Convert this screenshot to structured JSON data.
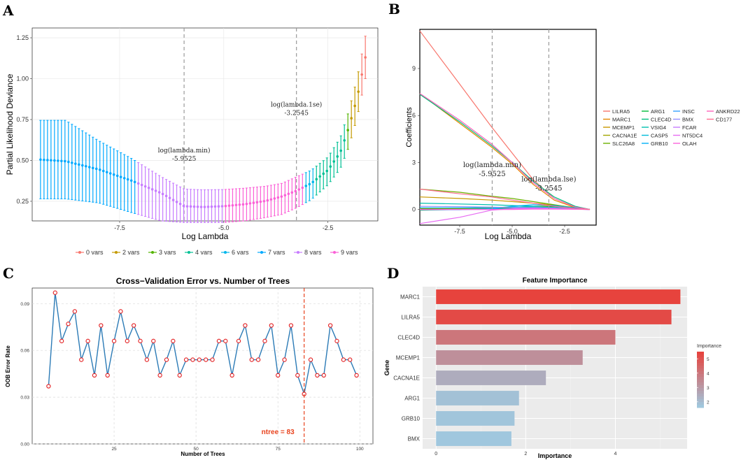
{
  "colors": {
    "v0": "#f8766d",
    "v2": "#c49a00",
    "v3": "#53b400",
    "v4": "#00c094",
    "v6": "#00b6eb",
    "v7": "#00a9ff",
    "v8": "#c77cff",
    "v9": "#fb61d7",
    "cv_line": "#2c7bb6",
    "cv_point": "#e31a1c",
    "cv_ref": "#e8431e"
  },
  "panel_labels": {
    "a": "A",
    "b": "B",
    "c": "C",
    "d": "D"
  },
  "chart_data": [
    {
      "id": "A",
      "type": "line",
      "title": "",
      "xlabel": "Log Lambda",
      "ylabel": "Partial Likelihood Deviance",
      "xlim": [
        -9.6,
        -1.3
      ],
      "ylim": [
        0.13,
        1.31
      ],
      "xticks": [
        -7.5,
        -5.0,
        -2.5
      ],
      "xtick_labels": [
        "-7.5",
        "-5.0",
        "-2.5"
      ],
      "yticks": [
        0.25,
        0.5,
        0.75,
        1.0,
        1.25
      ],
      "ytick_labels": [
        "0.25",
        "0.50",
        "0.75",
        "1.00",
        "1.25"
      ],
      "n_points": 94,
      "log_lambda_start": -9.4,
      "log_lambda_end": -1.6,
      "deviance_curve": {
        "log_lambda": [
          -9.4,
          -8.8,
          -8.0,
          -7.2,
          -6.5,
          -5.95,
          -5.5,
          -5.0,
          -4.5,
          -4.0,
          -3.6,
          -3.25,
          -2.9,
          -2.5,
          -2.2,
          -2.0,
          -1.8,
          -1.6
        ],
        "mean": [
          0.505,
          0.495,
          0.445,
          0.375,
          0.3,
          0.22,
          0.215,
          0.22,
          0.232,
          0.252,
          0.28,
          0.315,
          0.36,
          0.44,
          0.55,
          0.7,
          0.88,
          1.13
        ],
        "upper": [
          0.745,
          0.745,
          0.62,
          0.51,
          0.4,
          0.325,
          0.32,
          0.322,
          0.33,
          0.342,
          0.36,
          0.4,
          0.44,
          0.52,
          0.64,
          0.8,
          1.0,
          1.26
        ],
        "lower": [
          0.265,
          0.265,
          0.24,
          0.18,
          0.13,
          0.12,
          0.12,
          0.12,
          0.13,
          0.15,
          0.17,
          0.21,
          0.26,
          0.35,
          0.45,
          0.58,
          0.76,
          1.0
        ]
      },
      "legend": [
        {
          "key": "v0",
          "label": "0 vars",
          "from": -1.75,
          "to": -1.6
        },
        {
          "key": "v2",
          "label": "2 vars",
          "from": -1.95,
          "to": -1.75
        },
        {
          "key": "v3",
          "label": "3 vars",
          "from": -2.05,
          "to": -1.95
        },
        {
          "key": "v4",
          "label": "4 vars",
          "from": -2.85,
          "to": -2.05
        },
        {
          "key": "v6",
          "label": "6 vars",
          "from": -3.05,
          "to": -2.85
        },
        {
          "key": "v7",
          "label": "7 vars",
          "from": -9.5,
          "to": -7.1
        },
        {
          "key": "v8",
          "label": "8 vars",
          "from": -7.1,
          "to": -5.0
        },
        {
          "key": "v9",
          "label": "9 vars",
          "from": -5.0,
          "to": -3.05
        }
      ],
      "vlines": [
        {
          "x": -5.9525,
          "label1": "log(lambda.min)",
          "label2": "-5.9525",
          "label_y": 0.55
        },
        {
          "x": -3.2545,
          "label1": "log(lambda.1se)",
          "label2": "-3.2545",
          "label_y": 0.83
        }
      ]
    },
    {
      "id": "B",
      "type": "line",
      "xlabel": "Log Lambda",
      "ylabel": "Coefficients",
      "xlim": [
        -9.4,
        -1.0
      ],
      "ylim": [
        -1.0,
        11.5
      ],
      "xticks": [
        -7.5,
        -5.0,
        -2.5
      ],
      "xtick_labels": [
        "-7.5",
        "-5.0",
        "-2.5"
      ],
      "yticks": [
        0,
        3,
        6,
        9
      ],
      "ytick_labels": [
        "0",
        "3",
        "6",
        "9"
      ],
      "vlines": [
        {
          "x": -5.9525,
          "label1": "log(lambda.min)",
          "label2": "-5.9525",
          "label_y": 2.7
        },
        {
          "x": -3.2545,
          "label1": "log(lambda.lse)",
          "label2": "-3.2545",
          "label_y": 1.8
        }
      ],
      "series": [
        {
          "name": "LILRA5",
          "color": "#f8766d",
          "x": [
            -9.4,
            -7.5,
            -6.0,
            -5.0,
            -4.0,
            -3.0,
            -2.0,
            -1.3
          ],
          "y": [
            11.4,
            8.0,
            5.3,
            3.6,
            1.9,
            0.7,
            0.15,
            0.0
          ]
        },
        {
          "name": "MARC1",
          "color": "#e58700",
          "x": [
            -9.4,
            -7.5,
            -6.0,
            -5.0,
            -4.0,
            -3.0,
            -2.0,
            -1.3
          ],
          "y": [
            7.4,
            5.5,
            4.0,
            2.9,
            1.6,
            0.6,
            0.12,
            0.0
          ]
        },
        {
          "name": "MCEMP1",
          "color": "#c99800",
          "x": [
            -9.4,
            -7.5,
            -6.0,
            -5.0,
            -4.0,
            -3.0,
            -2.0,
            -1.3
          ],
          "y": [
            0.8,
            0.7,
            0.6,
            0.5,
            0.4,
            0.28,
            0.12,
            0.0
          ]
        },
        {
          "name": "CACNA1E",
          "color": "#a3a500",
          "x": [
            -9.4,
            -7.5,
            -6.0,
            -5.0,
            -4.0,
            -3.0,
            -2.0,
            -1.3
          ],
          "y": [
            0.05,
            0.05,
            0.08,
            0.12,
            0.2,
            0.22,
            0.12,
            0.0
          ]
        },
        {
          "name": "SLC26A8",
          "color": "#6bb100",
          "x": [
            -9.4,
            -7.5,
            -6.0,
            -5.0,
            -4.0,
            -3.0,
            -2.0,
            -1.3
          ],
          "y": [
            1.3,
            1.1,
            0.85,
            0.7,
            0.5,
            0.3,
            0.1,
            0.0
          ]
        },
        {
          "name": "ARG1",
          "color": "#00ba38",
          "x": [
            -9.4,
            -7.5,
            -6.0,
            -5.0,
            -4.0,
            -3.0,
            -2.0,
            -1.3
          ],
          "y": [
            -0.05,
            0.0,
            0.05,
            0.1,
            0.15,
            0.18,
            0.08,
            0.0
          ]
        },
        {
          "name": "CLEC4D",
          "color": "#00bf7d",
          "x": [
            -9.4,
            -7.5,
            -6.0,
            -5.0,
            -4.0,
            -3.0,
            -2.0,
            -1.3
          ],
          "y": [
            7.35,
            5.6,
            4.1,
            3.0,
            1.8,
            0.8,
            0.2,
            0.0
          ]
        },
        {
          "name": "VSIG4",
          "color": "#00c0af",
          "x": [
            -9.4,
            -7.5,
            -6.0,
            -5.0,
            -4.0,
            -3.0,
            -2.0,
            -1.3
          ],
          "y": [
            0.4,
            0.35,
            0.3,
            0.25,
            0.2,
            0.12,
            0.05,
            0.0
          ]
        },
        {
          "name": "CASP5",
          "color": "#00bcd8",
          "x": [
            -9.4,
            -7.5,
            -6.0,
            -5.0,
            -4.0,
            -3.0,
            -2.0,
            -1.3
          ],
          "y": [
            0.1,
            0.1,
            0.12,
            0.15,
            0.16,
            0.12,
            0.05,
            0.0
          ]
        },
        {
          "name": "GRB10",
          "color": "#00b0f6",
          "x": [
            -9.4,
            -7.5,
            -6.0,
            -5.0,
            -4.0,
            -3.0,
            -2.0,
            -1.3
          ],
          "y": [
            -0.02,
            -0.02,
            0.05,
            0.2,
            0.3,
            0.25,
            0.1,
            0.0
          ]
        },
        {
          "name": "INSC",
          "color": "#35a2ff",
          "x": [
            -9.4,
            -7.5,
            -6.0,
            -5.0,
            -4.0,
            -3.0,
            -2.0,
            -1.3
          ],
          "y": [
            0.0,
            0.0,
            0.02,
            0.05,
            0.08,
            0.06,
            0.02,
            0.0
          ]
        },
        {
          "name": "BMX",
          "color": "#9590ff",
          "x": [
            -9.4,
            -7.5,
            -6.0,
            -5.0,
            -4.0,
            -3.0,
            -2.0,
            -1.3
          ],
          "y": [
            0.2,
            0.18,
            0.15,
            0.12,
            0.1,
            0.07,
            0.03,
            0.0
          ]
        },
        {
          "name": "FCAR",
          "color": "#c77cff",
          "x": [
            -9.4,
            -7.5,
            -6.0,
            -5.0,
            -4.0,
            -3.0,
            -2.0,
            -1.3
          ],
          "y": [
            0.0,
            0.0,
            0.0,
            0.02,
            0.05,
            0.05,
            0.02,
            0.0
          ]
        },
        {
          "name": "NT5DC4",
          "color": "#e76bf3",
          "x": [
            -9.4,
            -7.5,
            -6.0,
            -5.0,
            -4.0,
            -3.0,
            -2.0,
            -1.3
          ],
          "y": [
            -0.9,
            -0.5,
            -0.05,
            0.05,
            0.1,
            0.08,
            0.03,
            0.0
          ]
        },
        {
          "name": "OLAH",
          "color": "#fa62db",
          "x": [
            -9.4,
            -7.5,
            -6.0,
            -5.0,
            -4.0,
            -3.0,
            -2.0,
            -1.3
          ],
          "y": [
            0.0,
            0.0,
            0.0,
            0.0,
            0.02,
            0.02,
            0.01,
            0.0
          ]
        },
        {
          "name": "ANKRD22",
          "color": "#ff62bc",
          "x": [
            -9.4,
            -7.5,
            -6.0,
            -5.0,
            -4.0,
            -3.0,
            -2.0,
            -1.3
          ],
          "y": [
            7.4,
            5.7,
            4.2,
            3.0,
            1.7,
            0.7,
            0.15,
            0.0
          ]
        },
        {
          "name": "CD177",
          "color": "#ff6c91",
          "x": [
            -9.4,
            -7.5,
            -6.0,
            -5.0,
            -4.0,
            -3.0,
            -2.0,
            -1.3
          ],
          "y": [
            1.3,
            1.0,
            0.8,
            0.6,
            0.4,
            0.2,
            0.06,
            0.0
          ]
        }
      ]
    },
    {
      "id": "C",
      "type": "line",
      "title": "Cross−Validation Error vs. Number of Trees",
      "xlabel": "Number of Trees",
      "ylabel": "OOB Error Rate",
      "xlim": [
        0,
        104
      ],
      "ylim": [
        0,
        0.1
      ],
      "xticks": [
        25,
        50,
        75,
        100
      ],
      "xtick_labels": [
        "25",
        "50",
        "75",
        "100"
      ],
      "yticks": [
        0.0,
        0.03,
        0.06,
        0.09
      ],
      "ytick_labels": [
        "0.00",
        "0.03",
        "0.06",
        "0.09"
      ],
      "x": [
        5,
        7,
        9,
        11,
        13,
        15,
        17,
        19,
        21,
        23,
        25,
        27,
        29,
        31,
        33,
        35,
        37,
        39,
        41,
        43,
        45,
        47,
        49,
        51,
        53,
        55,
        57,
        59,
        61,
        63,
        65,
        67,
        69,
        71,
        73,
        75,
        77,
        79,
        81,
        83,
        85,
        87,
        89,
        91,
        93,
        95,
        97,
        99
      ],
      "y": [
        0.037,
        0.097,
        0.066,
        0.077,
        0.085,
        0.054,
        0.066,
        0.044,
        0.076,
        0.044,
        0.066,
        0.085,
        0.066,
        0.076,
        0.066,
        0.054,
        0.066,
        0.044,
        0.054,
        0.066,
        0.044,
        0.054,
        0.054,
        0.054,
        0.054,
        0.054,
        0.066,
        0.066,
        0.044,
        0.066,
        0.076,
        0.054,
        0.054,
        0.066,
        0.076,
        0.044,
        0.054,
        0.076,
        0.044,
        0.032,
        0.054,
        0.044,
        0.044,
        0.076,
        0.066,
        0.054,
        0.054,
        0.044
      ],
      "ref_line": {
        "x": 83,
        "label": "ntree = 83"
      }
    },
    {
      "id": "D",
      "type": "bar",
      "orientation": "horizontal",
      "title": "Feature Importance",
      "xlabel": "Importance",
      "ylabel": "Gene",
      "xlim": [
        -0.3,
        5.6
      ],
      "xticks": [
        0,
        2,
        4
      ],
      "xtick_labels": [
        "0",
        "2",
        "4"
      ],
      "categories": [
        "MARC1",
        "LILRA5",
        "CLEC4D",
        "MCEMP1",
        "CACNA1E",
        "ARG1",
        "GRB10",
        "BMX"
      ],
      "values": [
        5.45,
        5.25,
        4.0,
        3.27,
        2.45,
        1.85,
        1.75,
        1.68
      ],
      "legend_title": "Importance",
      "legend_ticks": [
        2,
        3,
        4,
        5
      ],
      "legend_range": [
        1.6,
        5.5
      ],
      "color_low": "#9ecae1",
      "color_high": "#e8413b"
    }
  ]
}
